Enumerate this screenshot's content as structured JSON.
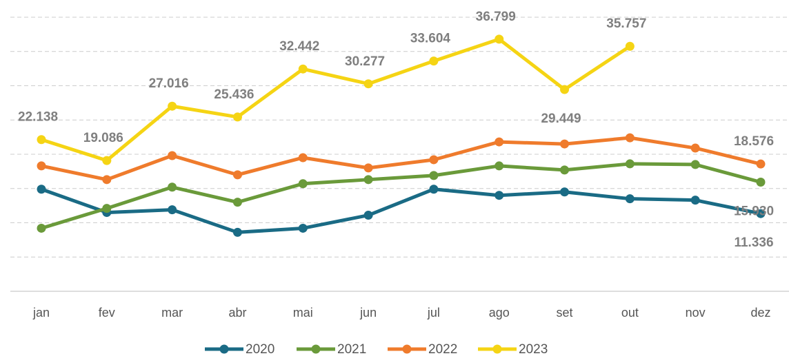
{
  "chart_data": {
    "type": "line",
    "categories": [
      "jan",
      "fev",
      "mar",
      "abr",
      "mai",
      "jun",
      "jul",
      "ago",
      "set",
      "out",
      "nov",
      "dez"
    ],
    "ylim": [
      0,
      40000
    ],
    "yticks": [
      0,
      5000,
      10000,
      15000,
      20000,
      25000,
      30000,
      35000,
      40000
    ],
    "grid": true,
    "legend": "bottom",
    "series": [
      {
        "name": "2020",
        "color": "#1a6b85",
        "values": [
          14900,
          11500,
          11900,
          8600,
          9200,
          11100,
          14900,
          14000,
          14500,
          13500,
          13300,
          11336
        ],
        "value_labels": [
          null,
          null,
          null,
          null,
          null,
          null,
          null,
          null,
          null,
          null,
          null,
          "11.336"
        ]
      },
      {
        "name": "2021",
        "color": "#6a9a3a",
        "values": [
          9200,
          12100,
          15200,
          13000,
          15700,
          16300,
          16900,
          18300,
          17700,
          18600,
          18500,
          15930
        ],
        "value_labels": [
          null,
          null,
          null,
          null,
          null,
          null,
          null,
          null,
          null,
          null,
          null,
          "15.930"
        ]
      },
      {
        "name": "2022",
        "color": "#ef7b2c",
        "values": [
          18300,
          16300,
          19800,
          17000,
          19500,
          18000,
          19200,
          21800,
          21500,
          22400,
          20900,
          18576
        ],
        "value_labels": [
          null,
          null,
          null,
          null,
          null,
          null,
          null,
          null,
          null,
          null,
          null,
          "18.576"
        ]
      },
      {
        "name": "2023",
        "color": "#f5d414",
        "values": [
          22138,
          19086,
          27016,
          25436,
          32442,
          30277,
          33604,
          36799,
          29449,
          35757,
          null,
          null
        ],
        "value_labels": [
          "22.138",
          "19.086",
          "27.016",
          "25.436",
          "32.442",
          "30.277",
          "33.604",
          "36.799",
          "29.449",
          "35.757",
          null,
          null
        ]
      }
    ]
  }
}
